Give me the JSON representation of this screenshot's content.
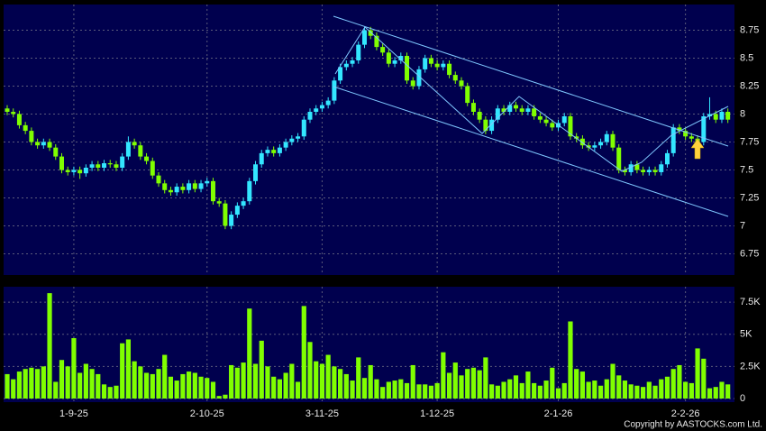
{
  "footer": "Copyright by AASTOCKS.com Ltd.",
  "chart_data": [
    {
      "type": "candlestick",
      "up_color": "#33e6ff",
      "down_color": "#80ff00",
      "ylim": [
        6.56,
        8.98
      ],
      "yticks": [
        8.75,
        8.5,
        8.25,
        8,
        7.75,
        7.5,
        7.25,
        7,
        6.75
      ],
      "grid": true,
      "ohlc": [
        [
          8.05,
          8.08,
          7.99,
          8.02
        ],
        [
          8.02,
          8.05,
          7.97,
          8.0
        ],
        [
          8.0,
          8.03,
          7.87,
          7.9
        ],
        [
          7.9,
          7.93,
          7.82,
          7.85
        ],
        [
          7.85,
          7.88,
          7.72,
          7.75
        ],
        [
          7.75,
          7.78,
          7.69,
          7.72
        ],
        [
          7.72,
          7.78,
          7.69,
          7.75
        ],
        [
          7.75,
          7.78,
          7.67,
          7.7
        ],
        [
          7.7,
          7.73,
          7.59,
          7.62
        ],
        [
          7.62,
          7.65,
          7.47,
          7.5
        ],
        [
          7.5,
          7.53,
          7.45,
          7.48
        ],
        [
          7.48,
          7.53,
          7.45,
          7.5
        ],
        [
          7.5,
          7.53,
          7.42,
          7.47
        ],
        [
          7.47,
          7.55,
          7.44,
          7.52
        ],
        [
          7.52,
          7.58,
          7.49,
          7.55
        ],
        [
          7.55,
          7.58,
          7.49,
          7.52
        ],
        [
          7.52,
          7.59,
          7.49,
          7.56
        ],
        [
          7.56,
          7.59,
          7.52,
          7.55
        ],
        [
          7.55,
          7.58,
          7.49,
          7.52
        ],
        [
          7.52,
          7.65,
          7.49,
          7.62
        ],
        [
          7.62,
          7.8,
          7.59,
          7.75
        ],
        [
          7.75,
          7.78,
          7.69,
          7.72
        ],
        [
          7.72,
          7.75,
          7.59,
          7.62
        ],
        [
          7.62,
          7.65,
          7.55,
          7.58
        ],
        [
          7.58,
          7.61,
          7.42,
          7.45
        ],
        [
          7.45,
          7.48,
          7.35,
          7.38
        ],
        [
          7.38,
          7.41,
          7.29,
          7.32
        ],
        [
          7.32,
          7.35,
          7.27,
          7.3
        ],
        [
          7.3,
          7.38,
          7.27,
          7.35
        ],
        [
          7.35,
          7.38,
          7.29,
          7.32
        ],
        [
          7.32,
          7.41,
          7.29,
          7.38
        ],
        [
          7.38,
          7.41,
          7.3,
          7.33
        ],
        [
          7.33,
          7.41,
          7.3,
          7.38
        ],
        [
          7.38,
          7.43,
          7.35,
          7.4
        ],
        [
          7.4,
          7.43,
          7.19,
          7.22
        ],
        [
          7.22,
          7.25,
          7.17,
          7.2
        ],
        [
          7.2,
          7.23,
          6.97,
          7.0
        ],
        [
          7.0,
          7.13,
          6.97,
          7.1
        ],
        [
          7.1,
          7.21,
          7.07,
          7.18
        ],
        [
          7.18,
          7.25,
          7.15,
          7.22
        ],
        [
          7.22,
          7.43,
          7.19,
          7.4
        ],
        [
          7.4,
          7.58,
          7.37,
          7.55
        ],
        [
          7.55,
          7.68,
          7.52,
          7.65
        ],
        [
          7.65,
          7.71,
          7.62,
          7.68
        ],
        [
          7.68,
          7.71,
          7.62,
          7.65
        ],
        [
          7.65,
          7.73,
          7.62,
          7.7
        ],
        [
          7.7,
          7.78,
          7.67,
          7.75
        ],
        [
          7.75,
          7.81,
          7.72,
          7.78
        ],
        [
          7.78,
          7.83,
          7.75,
          7.8
        ],
        [
          7.8,
          7.98,
          7.77,
          7.95
        ],
        [
          7.95,
          8.05,
          7.92,
          8.02
        ],
        [
          8.02,
          8.08,
          7.99,
          8.05
        ],
        [
          8.05,
          8.11,
          8.02,
          8.08
        ],
        [
          8.08,
          8.15,
          8.05,
          8.12
        ],
        [
          8.12,
          8.33,
          8.09,
          8.3
        ],
        [
          8.3,
          8.45,
          8.27,
          8.42
        ],
        [
          8.42,
          8.48,
          8.39,
          8.45
        ],
        [
          8.45,
          8.51,
          8.42,
          8.48
        ],
        [
          8.48,
          8.65,
          8.45,
          8.62
        ],
        [
          8.62,
          8.78,
          8.59,
          8.75
        ],
        [
          8.75,
          8.78,
          8.67,
          8.7
        ],
        [
          8.7,
          8.73,
          8.57,
          8.6
        ],
        [
          8.6,
          8.63,
          8.52,
          8.55
        ],
        [
          8.55,
          8.58,
          8.42,
          8.45
        ],
        [
          8.45,
          8.51,
          8.42,
          8.48
        ],
        [
          8.48,
          8.55,
          8.45,
          8.52
        ],
        [
          8.52,
          8.55,
          8.27,
          8.3
        ],
        [
          8.3,
          8.33,
          8.22,
          8.25
        ],
        [
          8.25,
          8.43,
          8.22,
          8.4
        ],
        [
          8.4,
          8.53,
          8.37,
          8.5
        ],
        [
          8.5,
          8.53,
          8.42,
          8.45
        ],
        [
          8.45,
          8.48,
          8.39,
          8.42
        ],
        [
          8.42,
          8.48,
          8.39,
          8.45
        ],
        [
          8.45,
          8.48,
          8.32,
          8.35
        ],
        [
          8.35,
          8.38,
          8.27,
          8.3
        ],
        [
          8.3,
          8.33,
          8.22,
          8.25
        ],
        [
          8.25,
          8.28,
          8.07,
          8.1
        ],
        [
          8.1,
          8.13,
          7.99,
          8.02
        ],
        [
          8.02,
          8.05,
          7.92,
          7.95
        ],
        [
          7.95,
          7.98,
          7.82,
          7.85
        ],
        [
          7.85,
          7.98,
          7.82,
          7.95
        ],
        [
          7.95,
          8.08,
          7.92,
          8.05
        ],
        [
          8.05,
          8.08,
          7.99,
          8.02
        ],
        [
          8.02,
          8.11,
          7.99,
          8.08
        ],
        [
          8.08,
          8.11,
          8.02,
          8.05
        ],
        [
          8.05,
          8.08,
          7.99,
          8.02
        ],
        [
          8.02,
          8.08,
          7.99,
          8.05
        ],
        [
          8.05,
          8.08,
          7.95,
          7.98
        ],
        [
          7.98,
          8.01,
          7.92,
          7.95
        ],
        [
          7.95,
          7.98,
          7.89,
          7.92
        ],
        [
          7.92,
          7.95,
          7.85,
          7.88
        ],
        [
          7.88,
          7.95,
          7.85,
          7.92
        ],
        [
          7.92,
          8.01,
          7.89,
          7.98
        ],
        [
          7.98,
          8.01,
          7.77,
          7.8
        ],
        [
          7.8,
          7.83,
          7.75,
          7.78
        ],
        [
          7.78,
          7.81,
          7.69,
          7.72
        ],
        [
          7.72,
          7.75,
          7.67,
          7.7
        ],
        [
          7.7,
          7.75,
          7.67,
          7.72
        ],
        [
          7.72,
          7.78,
          7.69,
          7.75
        ],
        [
          7.75,
          7.85,
          7.72,
          7.82
        ],
        [
          7.82,
          7.85,
          7.67,
          7.7
        ],
        [
          7.7,
          7.73,
          7.47,
          7.5
        ],
        [
          7.5,
          7.53,
          7.45,
          7.48
        ],
        [
          7.48,
          7.58,
          7.45,
          7.55
        ],
        [
          7.55,
          7.58,
          7.47,
          7.5
        ],
        [
          7.5,
          7.53,
          7.45,
          7.48
        ],
        [
          7.48,
          7.53,
          7.45,
          7.5
        ],
        [
          7.5,
          7.53,
          7.45,
          7.48
        ],
        [
          7.48,
          7.58,
          7.45,
          7.55
        ],
        [
          7.55,
          7.68,
          7.52,
          7.65
        ],
        [
          7.65,
          7.91,
          7.62,
          7.88
        ],
        [
          7.88,
          7.91,
          7.82,
          7.85
        ],
        [
          7.85,
          7.88,
          7.77,
          7.8
        ],
        [
          7.8,
          7.83,
          7.75,
          7.78
        ],
        [
          7.78,
          7.81,
          7.72,
          7.75
        ],
        [
          7.75,
          8.01,
          7.72,
          7.98
        ],
        [
          7.98,
          8.15,
          7.95,
          8.0
        ],
        [
          8.0,
          8.03,
          7.92,
          7.95
        ],
        [
          7.95,
          8.05,
          7.92,
          8.02
        ],
        [
          8.02,
          8.05,
          7.92,
          7.95
        ]
      ]
    },
    {
      "type": "bar",
      "color": "#80ff00",
      "ylim": [
        0,
        8700
      ],
      "yticks": [
        {
          "value": 7500,
          "label": "7.5K"
        },
        {
          "value": 5000,
          "label": "5K"
        },
        {
          "value": 2500,
          "label": "2.5K"
        },
        0
      ],
      "grid": true,
      "categories": [
        null,
        null,
        null,
        null,
        null,
        null,
        null,
        null,
        null,
        null,
        null,
        "1-9-25",
        null,
        null,
        null,
        null,
        null,
        null,
        null,
        null,
        null,
        null,
        null,
        null,
        null,
        null,
        null,
        null,
        null,
        null,
        null,
        null,
        null,
        "2-10-25",
        null,
        null,
        null,
        null,
        null,
        null,
        null,
        null,
        null,
        null,
        null,
        null,
        null,
        null,
        null,
        null,
        null,
        null,
        "3-11-25",
        null,
        null,
        null,
        null,
        null,
        null,
        null,
        null,
        null,
        null,
        null,
        null,
        null,
        null,
        null,
        null,
        null,
        null,
        "1-12-25",
        null,
        null,
        null,
        null,
        null,
        null,
        null,
        null,
        null,
        null,
        null,
        null,
        null,
        null,
        null,
        null,
        null,
        null,
        null,
        "2-1-26",
        null,
        null,
        null,
        null,
        null,
        null,
        null,
        null,
        null,
        null,
        null,
        null,
        null,
        null,
        null,
        null,
        null,
        null,
        null,
        null,
        "2-2-26",
        null,
        null,
        null,
        null,
        null,
        null,
        null
      ],
      "values": [
        1900,
        1500,
        2100,
        2300,
        2400,
        2300,
        2500,
        8200,
        1300,
        3000,
        2500,
        4700,
        2000,
        2700,
        2300,
        1900,
        1100,
        900,
        1000,
        4300,
        4600,
        2900,
        2500,
        2000,
        1900,
        2300,
        3400,
        1700,
        1400,
        1900,
        2100,
        2000,
        1700,
        1600,
        1300,
        200,
        300,
        2600,
        2400,
        2800,
        7000,
        2700,
        4500,
        2500,
        1700,
        1500,
        2000,
        2700,
        1300,
        7200,
        4400,
        2900,
        2700,
        3400,
        2500,
        2300,
        1900,
        1400,
        3200,
        1600,
        2600,
        1500,
        900,
        1300,
        1400,
        1500,
        1200,
        2600,
        1100,
        1100,
        1000,
        1200,
        3600,
        2000,
        2800,
        1800,
        2300,
        2400,
        2200,
        3200,
        1100,
        1000,
        1300,
        1500,
        1800,
        1200,
        2100,
        1200,
        1000,
        1400,
        2400,
        800,
        1200,
        6000,
        2300,
        2100,
        1300,
        1400,
        1000,
        1500,
        2700,
        1800,
        1400,
        1100,
        1000,
        900,
        1300,
        1000,
        1500,
        1700,
        2300,
        2600,
        1300,
        1200,
        3900,
        3100,
        800,
        900,
        1300,
        1100
      ]
    }
  ]
}
